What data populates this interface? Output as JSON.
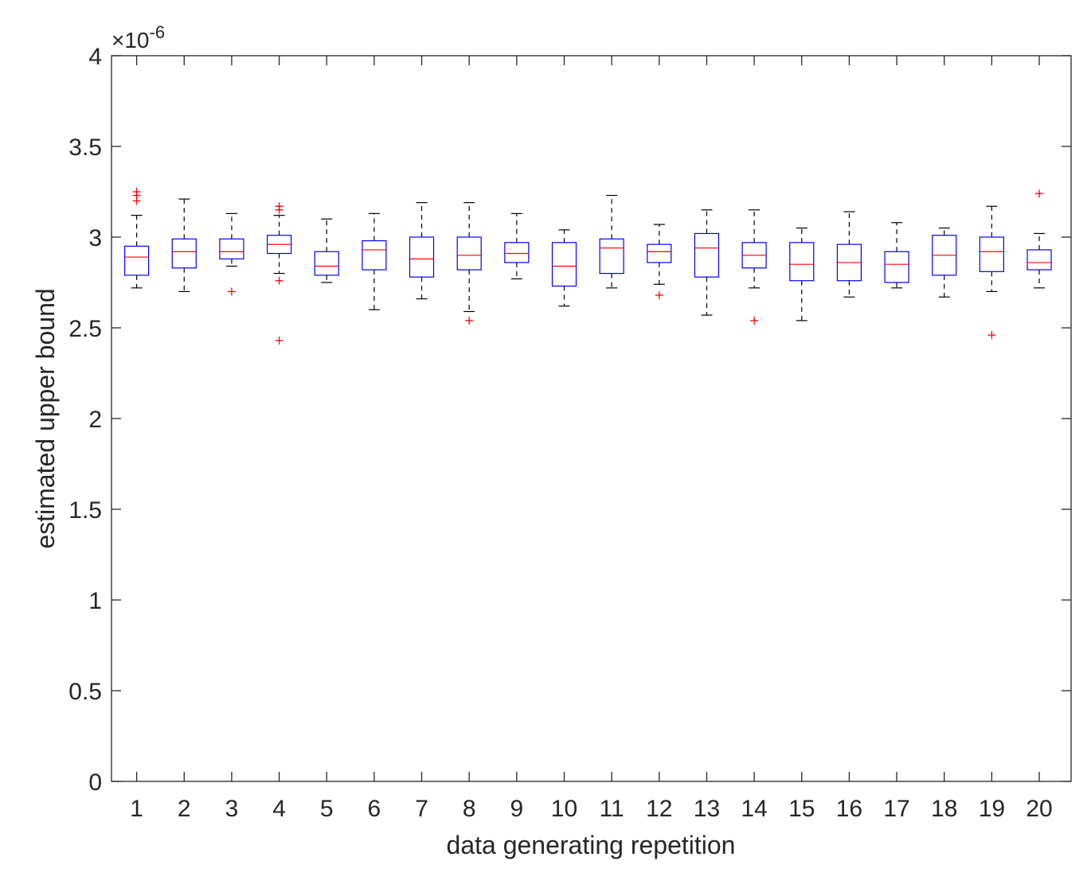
{
  "chart_data": {
    "type": "box",
    "xlabel": "data generating repetition",
    "ylabel": "estimated upper bound",
    "y_exponent_label": "×10",
    "y_exponent_power": "-6",
    "ylim": [
      0,
      4
    ],
    "yticks": [
      "0",
      "0.5",
      "1",
      "1.5",
      "2",
      "2.5",
      "3",
      "3.5",
      "4"
    ],
    "ytick_values": [
      0,
      0.5,
      1,
      1.5,
      2,
      2.5,
      3,
      3.5,
      4
    ],
    "categories": [
      "1",
      "2",
      "3",
      "4",
      "5",
      "6",
      "7",
      "8",
      "9",
      "10",
      "11",
      "12",
      "13",
      "14",
      "15",
      "16",
      "17",
      "18",
      "19",
      "20"
    ],
    "grid": false,
    "colors": {
      "box": "#0000ff",
      "median": "#ff0000",
      "whisker": "#000000",
      "outlier": "#ff0000",
      "axis": "#262626"
    },
    "boxes": [
      {
        "category": "1",
        "whisker_low": 2.72,
        "q1": 2.79,
        "median": 2.89,
        "q3": 2.95,
        "whisker_high": 3.12,
        "outliers": [
          3.2,
          3.23,
          3.25
        ]
      },
      {
        "category": "2",
        "whisker_low": 2.7,
        "q1": 2.83,
        "median": 2.92,
        "q3": 2.99,
        "whisker_high": 3.21,
        "outliers": []
      },
      {
        "category": "3",
        "whisker_low": 2.84,
        "q1": 2.88,
        "median": 2.92,
        "q3": 2.99,
        "whisker_high": 3.13,
        "outliers": [
          2.7
        ]
      },
      {
        "category": "4",
        "whisker_low": 2.8,
        "q1": 2.91,
        "median": 2.96,
        "q3": 3.01,
        "whisker_high": 3.12,
        "outliers": [
          2.43,
          2.76,
          3.15,
          3.17
        ]
      },
      {
        "category": "5",
        "whisker_low": 2.75,
        "q1": 2.79,
        "median": 2.84,
        "q3": 2.92,
        "whisker_high": 3.1,
        "outliers": []
      },
      {
        "category": "6",
        "whisker_low": 2.6,
        "q1": 2.82,
        "median": 2.93,
        "q3": 2.98,
        "whisker_high": 3.13,
        "outliers": []
      },
      {
        "category": "7",
        "whisker_low": 2.66,
        "q1": 2.78,
        "median": 2.88,
        "q3": 3.0,
        "whisker_high": 3.19,
        "outliers": []
      },
      {
        "category": "8",
        "whisker_low": 2.59,
        "q1": 2.82,
        "median": 2.9,
        "q3": 3.0,
        "whisker_high": 3.19,
        "outliers": [
          2.54
        ]
      },
      {
        "category": "9",
        "whisker_low": 2.77,
        "q1": 2.86,
        "median": 2.91,
        "q3": 2.97,
        "whisker_high": 3.13,
        "outliers": []
      },
      {
        "category": "10",
        "whisker_low": 2.62,
        "q1": 2.73,
        "median": 2.84,
        "q3": 2.97,
        "whisker_high": 3.04,
        "outliers": []
      },
      {
        "category": "11",
        "whisker_low": 2.72,
        "q1": 2.8,
        "median": 2.94,
        "q3": 2.99,
        "whisker_high": 3.23,
        "outliers": []
      },
      {
        "category": "12",
        "whisker_low": 2.74,
        "q1": 2.86,
        "median": 2.92,
        "q3": 2.96,
        "whisker_high": 3.07,
        "outliers": [
          2.68
        ]
      },
      {
        "category": "13",
        "whisker_low": 2.57,
        "q1": 2.78,
        "median": 2.94,
        "q3": 3.02,
        "whisker_high": 3.15,
        "outliers": []
      },
      {
        "category": "14",
        "whisker_low": 2.72,
        "q1": 2.83,
        "median": 2.9,
        "q3": 2.97,
        "whisker_high": 3.15,
        "outliers": [
          2.54
        ]
      },
      {
        "category": "15",
        "whisker_low": 2.54,
        "q1": 2.76,
        "median": 2.85,
        "q3": 2.97,
        "whisker_high": 3.05,
        "outliers": []
      },
      {
        "category": "16",
        "whisker_low": 2.67,
        "q1": 2.76,
        "median": 2.86,
        "q3": 2.96,
        "whisker_high": 3.14,
        "outliers": []
      },
      {
        "category": "17",
        "whisker_low": 2.72,
        "q1": 2.75,
        "median": 2.85,
        "q3": 2.92,
        "whisker_high": 3.08,
        "outliers": []
      },
      {
        "category": "18",
        "whisker_low": 2.67,
        "q1": 2.79,
        "median": 2.9,
        "q3": 3.01,
        "whisker_high": 3.05,
        "outliers": []
      },
      {
        "category": "19",
        "whisker_low": 2.7,
        "q1": 2.81,
        "median": 2.92,
        "q3": 3.0,
        "whisker_high": 3.17,
        "outliers": [
          2.46
        ]
      },
      {
        "category": "20",
        "whisker_low": 2.72,
        "q1": 2.82,
        "median": 2.86,
        "q3": 2.93,
        "whisker_high": 3.02,
        "outliers": [
          3.24
        ]
      }
    ]
  }
}
